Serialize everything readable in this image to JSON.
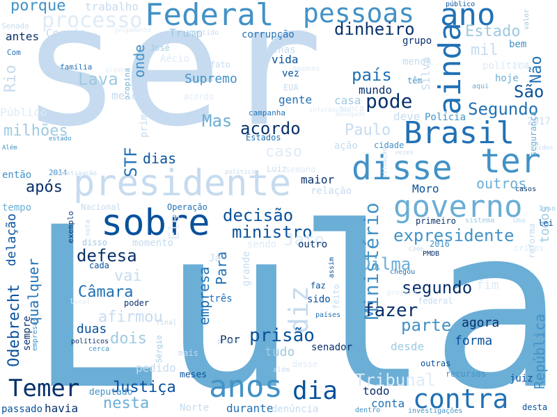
{
  "colors": {
    "background": "#ffffff",
    "palette": [
      "#08306b",
      "#08519c",
      "#2171b5",
      "#4292c6",
      "#6baed6",
      "#9ecae1",
      "#c6dbef",
      "#deebf7"
    ]
  },
  "words": [
    "Lula",
    "ser",
    "presidente",
    "sobre",
    "Federal",
    "pessoas",
    "ano",
    "disse",
    "ter",
    "Brasil",
    "ainda",
    "governo",
    "anos",
    "contra",
    "Temer",
    "dia",
    "diz",
    "Ministério",
    "República",
    "Odebrecht",
    "expresidente",
    "ministro",
    "decisão",
    "acordo",
    "pode",
    "Segundo",
    "São",
    "país",
    "Lava",
    "Mas",
    "dinheiro",
    "Estado",
    "mil",
    "Não",
    "processo",
    "porque",
    "trabalho",
    "Trump",
    "Coreia",
    "antes",
    "Senado",
    "Com",
    "família",
    "Rio",
    "Público",
    "milhões",
    "então",
    "2014",
    "tempo",
    "Nacional",
    "Operação",
    "momento",
    "defesa",
    "Câmara",
    "Justiça",
    "empresa",
    "Para",
    "qualquer",
    "Dilma",
    "Paulo",
    "Supremo",
    "após",
    "outros",
    "STF",
    "dias",
    "onde",
    "primeira",
    "prisão",
    "fazer",
    "segundo",
    "parte",
    "agora",
    "forma",
    "Tribunal",
    "conta",
    "todo",
    "durante",
    "nesta",
    "havia",
    "passado",
    "deputado",
    "meses",
    "pedido",
    "Sérgio",
    "dois",
    "duas",
    "afirmou",
    "três",
    "Por",
    "senador",
    "desde",
    "outras",
    "recursos",
    "juiz",
    "desta",
    "denúncia",
    "Norte",
    "vida",
    "vez",
    "grupo",
    "menos",
    "casa",
    "deve",
    "mundo",
    "gente",
    "têm",
    "Polícia",
    "bem",
    "política",
    "hoje",
    "corrupção",
    "José",
    "fato",
    "EUA",
    "Moro",
    "maior",
    "relação",
    "Luiz",
    "semana",
    "cidade",
    "ação",
    "Estados",
    "Além",
    "estado",
    "propina",
    "campanha",
    "Jato",
    "sendo",
    "outro",
    "sido",
    "primeiro",
    "todos",
    "crimes",
    "2016",
    "faz",
    "assim",
    "fim",
    "federal",
    "países",
    "chegou",
    "PMDB",
    "exemplo",
    "disso",
    "cada",
    "poder",
    "políticos",
    "cerca",
    "empresas",
    "sempre",
    "lei",
    "Isso",
    "2017",
    "segurança",
    "casos",
    "Uma",
    "aqui",
    "apenas",
    "partido",
    "público",
    "valor",
    "alguns",
    "Sul",
    "meio",
    "Ele",
    "vai",
    "caso",
    "nota",
    "feito",
    "grande",
    "sistema",
    "Como",
    "acordo",
    "apenas",
    "nunca",
    "advogado",
    "vezes",
    "situação",
    "investigação",
    "político",
    "unidos",
    "dentro",
    "investigações",
    "julgamento",
    "Silva",
    "reforma",
    "informações",
    "Aécio",
    "tudo",
    "local",
    "Já",
    "preso",
    "delação",
    "final",
    "mais",
    "desse",
    "2015",
    "além",
    "projeto"
  ]
}
